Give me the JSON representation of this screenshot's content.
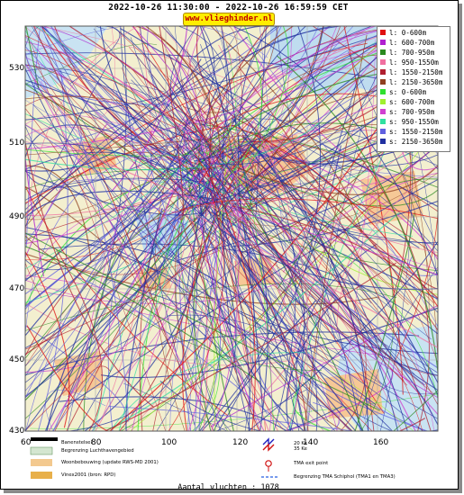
{
  "header": {
    "title": "2022-10-26 11:30:00 - 2022-10-26 16:59:59 CET",
    "brand": "www.vlieghinder.nl"
  },
  "axes": {
    "y_ticks": [
      "530",
      "510",
      "490",
      "470",
      "450",
      "430"
    ],
    "x_ticks": [
      "60",
      "80",
      "100",
      "120",
      "140",
      "160"
    ]
  },
  "legend": [
    {
      "label": "l: 0-600m",
      "color": "#e01010"
    },
    {
      "label": "l: 600-700m",
      "color": "#b020d0"
    },
    {
      "label": "l: 700-950m",
      "color": "#2a8a20"
    },
    {
      "label": "l: 950-1550m",
      "color": "#f070a0"
    },
    {
      "label": "l: 1550-2150m",
      "color": "#b02030"
    },
    {
      "label": "l: 2150-3650m",
      "color": "#904020"
    },
    {
      "label": "s: 0-600m",
      "color": "#30e030"
    },
    {
      "label": "s: 600-700m",
      "color": "#a0f030"
    },
    {
      "label": "s: 700-950m",
      "color": "#d040d0"
    },
    {
      "label": "s: 950-1550m",
      "color": "#30e0a0"
    },
    {
      "label": "s: 1550-2150m",
      "color": "#6060e0"
    },
    {
      "label": "s: 2150-3650m",
      "color": "#2030a0"
    }
  ],
  "footer": {
    "runway": "Banenstelsel",
    "airport_boundary": "Begrenzing Luchthavengebied",
    "housing": "Woonbebouwing (update RWS-MD 2001)",
    "vinex": "Vinex2001 (bron: RPD)",
    "ke20": "20 Ke",
    "ke35": "35 Ke",
    "tma_exit": "TMA exit point",
    "tma_boundary": "Begrenzing TMA Schiphol  (TMA1 en TMA3)"
  },
  "count_text": "Aantal vluchten : 1078",
  "colors": {
    "land": "#f3efcf",
    "water": "#bfdcef",
    "urban": "#f6c896",
    "grid": "#a9a9a9"
  }
}
